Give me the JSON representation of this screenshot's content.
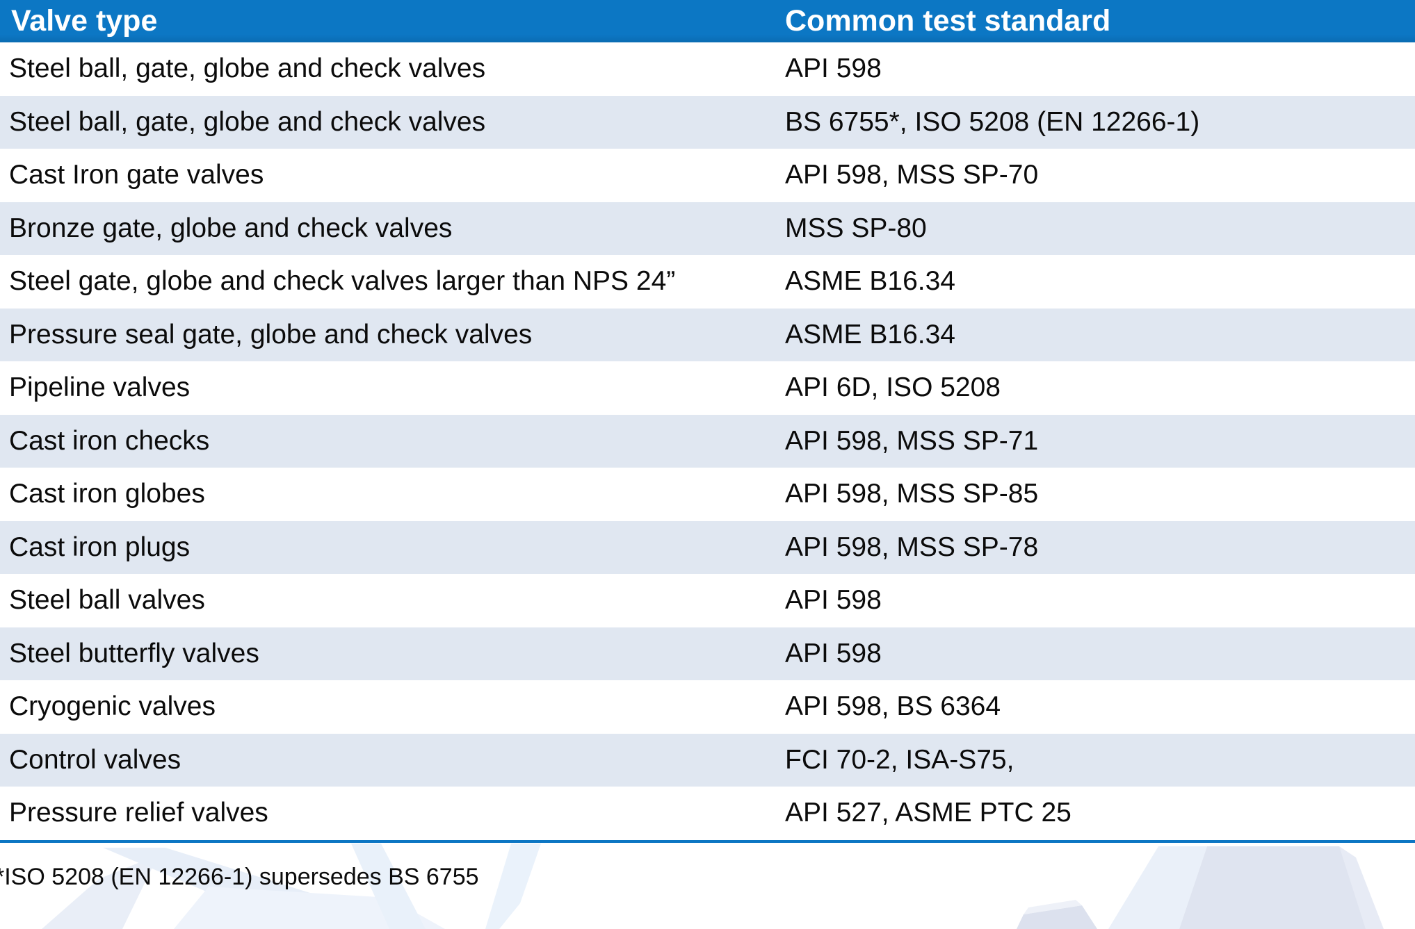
{
  "table": {
    "columns": [
      "Valve type",
      "Common test standard"
    ],
    "rows": [
      {
        "valve_type": "Steel ball, gate, globe and check valves",
        "standard": "API 598"
      },
      {
        "valve_type": "Steel ball, gate, globe and check valves",
        "standard": "BS 6755*, ISO 5208 (EN 12266-1)"
      },
      {
        "valve_type": "Cast Iron gate valves",
        "standard": "API 598, MSS SP-70"
      },
      {
        "valve_type": "Bronze gate, globe and check valves",
        "standard": "MSS SP-80"
      },
      {
        "valve_type": "Steel gate, globe and check valves larger than NPS 24”",
        "standard": "ASME B16.34"
      },
      {
        "valve_type": "Pressure seal gate, globe and check valves",
        "standard": "ASME B16.34"
      },
      {
        "valve_type": "Pipeline valves",
        "standard": "API 6D, ISO 5208"
      },
      {
        "valve_type": "Cast iron checks",
        "standard": "API 598, MSS SP-71"
      },
      {
        "valve_type": "Cast iron globes",
        "standard": "API 598, MSS SP-85"
      },
      {
        "valve_type": "Cast iron plugs",
        "standard": "API 598, MSS SP-78"
      },
      {
        "valve_type": "Steel ball valves",
        "standard": "API 598"
      },
      {
        "valve_type": "Steel butterfly valves",
        "standard": "API 598"
      },
      {
        "valve_type": "Cryogenic valves",
        "standard": "API 598, BS 6364"
      },
      {
        "valve_type": "Control valves",
        "standard": "FCI 70-2, ISA-S75,"
      },
      {
        "valve_type": "Pressure relief valves",
        "standard": "API 527, ASME PTC 25"
      }
    ]
  },
  "footnote": "*ISO 5208 (EN 12266-1) supersedes BS 6755",
  "colors": {
    "header_bg": "#0c77c4",
    "header_bg_dark": "#0a6cb2",
    "header_text": "#ffffff",
    "row_bg": "#ffffff",
    "row_alt_bg": "#e0e7f1",
    "divider": "#0c76c3",
    "text": "#0b0b0b",
    "watermark_light": "#e9f0f9",
    "watermark_mid": "#dfe4f0",
    "watermark_dark": "#dce1ee"
  }
}
